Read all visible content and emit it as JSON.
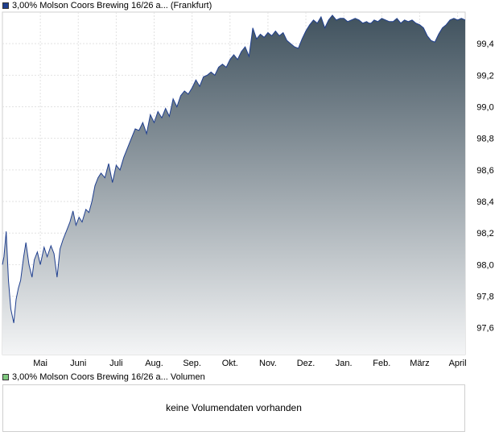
{
  "price_legend": {
    "label": "3,00% Molson Coors Brewing 16/26 a...",
    "exchange": "(Frankfurt)",
    "color": "#1f3f8f"
  },
  "volume_legend": {
    "label": "3,00% Molson Coors Brewing 16/26 a...",
    "suffix": "Volumen",
    "color": "#7fc97f"
  },
  "volume_message": "keine Volumendaten vorhanden",
  "chart_data": {
    "type": "area",
    "title": "",
    "xlabel": "",
    "ylabel": "",
    "ylim": [
      97.43,
      99.6
    ],
    "yticks": [
      97.6,
      97.8,
      98.0,
      98.2,
      98.4,
      98.6,
      98.8,
      99.0,
      99.2,
      99.4
    ],
    "ytick_labels": [
      "97,6",
      "97,8",
      "98,0",
      "98,2",
      "98,4",
      "98,6",
      "98,8",
      "99,0",
      "99,2",
      "99,4"
    ],
    "x_range": [
      0,
      12.2
    ],
    "xticks": [
      {
        "label": "Mai",
        "x": 1
      },
      {
        "label": "Juni",
        "x": 2
      },
      {
        "label": "Juli",
        "x": 3
      },
      {
        "label": "Aug.",
        "x": 4
      },
      {
        "label": "Sep.",
        "x": 5
      },
      {
        "label": "Okt.",
        "x": 6
      },
      {
        "label": "Nov.",
        "x": 7
      },
      {
        "label": "Dez.",
        "x": 8
      },
      {
        "label": "Jan.",
        "x": 9
      },
      {
        "label": "Feb.",
        "x": 10
      },
      {
        "label": "März",
        "x": 11
      },
      {
        "label": "April",
        "x": 12
      }
    ],
    "grid": true,
    "line_color": "#1f3f8f",
    "fill_top": "#40525e",
    "fill_bottom": "#f4f5f6",
    "series": [
      {
        "x": [
          0.0,
          0.04,
          0.1,
          0.16,
          0.22,
          0.3,
          0.36,
          0.42,
          0.48,
          0.56,
          0.62,
          0.7,
          0.78,
          0.84,
          0.92,
          1.0,
          1.1,
          1.18,
          1.28,
          1.36,
          1.44,
          1.52,
          1.6,
          1.7,
          1.78,
          1.86,
          1.94,
          2.02,
          2.1,
          2.2,
          2.28,
          2.36,
          2.44,
          2.52,
          2.6,
          2.7,
          2.8,
          2.9,
          3.0,
          3.1,
          3.2,
          3.3,
          3.4,
          3.5,
          3.6,
          3.7,
          3.8,
          3.9,
          4.0,
          4.1,
          4.2,
          4.3,
          4.4,
          4.5,
          4.6,
          4.7,
          4.8,
          4.9,
          5.0,
          5.1,
          5.2,
          5.3,
          5.4,
          5.5,
          5.6,
          5.7,
          5.8,
          5.9,
          6.0,
          6.1,
          6.2,
          6.3,
          6.4,
          6.5,
          6.6,
          6.7,
          6.8,
          6.9,
          7.0,
          7.1,
          7.2,
          7.3,
          7.4,
          7.5,
          7.6,
          7.7,
          7.8,
          7.9,
          8.0,
          8.1,
          8.2,
          8.3,
          8.4,
          8.5,
          8.6,
          8.7,
          8.8,
          8.9,
          9.0,
          9.1,
          9.2,
          9.3,
          9.4,
          9.5,
          9.6,
          9.66,
          9.72,
          9.8,
          9.9,
          10.0,
          10.1,
          10.2,
          10.3,
          10.4,
          10.5,
          10.6,
          10.7,
          10.8,
          10.9,
          11.0,
          11.1,
          11.2,
          11.3,
          11.4,
          11.5,
          11.6,
          11.7,
          11.8,
          11.9,
          12.0,
          12.1,
          12.2
        ],
        "y": [
          98.0,
          98.05,
          98.21,
          97.9,
          97.72,
          97.63,
          97.78,
          97.85,
          97.9,
          98.05,
          98.14,
          98.0,
          97.92,
          98.03,
          98.08,
          98.0,
          98.11,
          98.05,
          98.12,
          98.07,
          97.92,
          98.1,
          98.16,
          98.22,
          98.27,
          98.34,
          98.25,
          98.3,
          98.27,
          98.35,
          98.33,
          98.4,
          98.5,
          98.55,
          98.58,
          98.55,
          98.64,
          98.52,
          98.63,
          98.6,
          98.68,
          98.74,
          98.8,
          98.86,
          98.85,
          98.9,
          98.83,
          98.95,
          98.9,
          98.97,
          98.93,
          98.99,
          98.94,
          99.05,
          99.0,
          99.07,
          99.1,
          99.08,
          99.12,
          99.17,
          99.13,
          99.19,
          99.2,
          99.22,
          99.2,
          99.25,
          99.27,
          99.25,
          99.3,
          99.33,
          99.3,
          99.35,
          99.38,
          99.32,
          99.5,
          99.43,
          99.46,
          99.44,
          99.47,
          99.45,
          99.48,
          99.45,
          99.47,
          99.42,
          99.4,
          99.38,
          99.37,
          99.43,
          99.48,
          99.52,
          99.55,
          99.53,
          99.57,
          99.5,
          99.55,
          99.58,
          99.55,
          99.56,
          99.56,
          99.54,
          99.55,
          99.56,
          99.55,
          99.53,
          99.54,
          99.53,
          99.53,
          99.55,
          99.54,
          99.56,
          99.55,
          99.54,
          99.54,
          99.56,
          99.53,
          99.55,
          99.54,
          99.55,
          99.53,
          99.52,
          99.5,
          99.45,
          99.42,
          99.41,
          99.46,
          99.5,
          99.52,
          99.55,
          99.56,
          99.55,
          99.56,
          99.55
        ]
      }
    ]
  }
}
